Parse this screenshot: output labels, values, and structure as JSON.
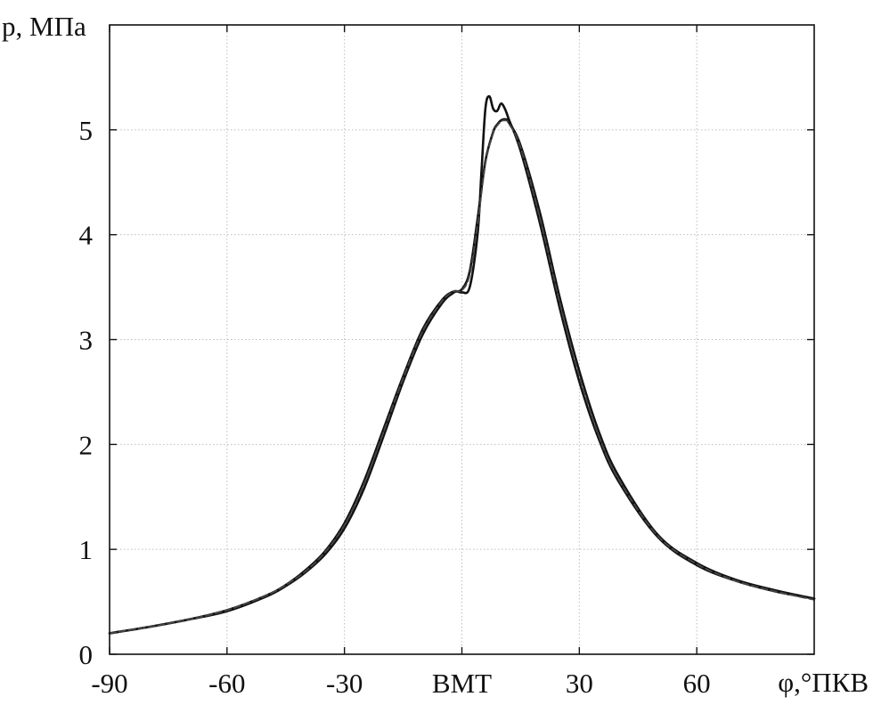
{
  "chart_data": {
    "type": "line",
    "title": "",
    "xlabel": "φ,°ПКВ",
    "ylabel": "p, МПа",
    "xlim": [
      -90,
      90
    ],
    "ylim": [
      0,
      6
    ],
    "grid": true,
    "x_ticks": [
      {
        "value": -90,
        "label": "-90"
      },
      {
        "value": -60,
        "label": "-60"
      },
      {
        "value": -30,
        "label": "-30"
      },
      {
        "value": 0,
        "label": "ВМТ"
      },
      {
        "value": 30,
        "label": "30"
      },
      {
        "value": 60,
        "label": "60"
      }
    ],
    "y_ticks": [
      {
        "value": 0,
        "label": "0"
      },
      {
        "value": 1,
        "label": "1"
      },
      {
        "value": 2,
        "label": "2"
      },
      {
        "value": 3,
        "label": "3"
      },
      {
        "value": 4,
        "label": "4"
      },
      {
        "value": 5,
        "label": "5"
      }
    ],
    "series": [
      {
        "color": "#111111",
        "style": "solid",
        "x": [
          -90,
          -80,
          -70,
          -60,
          -50,
          -45,
          -40,
          -35,
          -30,
          -25,
          -20,
          -15,
          -10,
          -5,
          -2,
          0,
          2,
          4,
          5,
          6,
          7,
          8,
          9,
          10,
          11,
          12,
          15,
          20,
          25,
          30,
          35,
          40,
          50,
          60,
          70,
          80,
          90
        ],
        "y": [
          0.2,
          0.26,
          0.33,
          0.42,
          0.56,
          0.66,
          0.8,
          0.98,
          1.25,
          1.65,
          2.15,
          2.65,
          3.1,
          3.38,
          3.46,
          3.45,
          3.5,
          4.0,
          4.6,
          5.2,
          5.32,
          5.2,
          5.18,
          5.25,
          5.2,
          5.1,
          4.8,
          4.1,
          3.3,
          2.6,
          2.05,
          1.65,
          1.12,
          0.85,
          0.7,
          0.6,
          0.53
        ]
      },
      {
        "color": "#111111",
        "style": "solid",
        "x": [
          -90,
          -80,
          -70,
          -60,
          -50,
          -45,
          -40,
          -35,
          -30,
          -25,
          -20,
          -15,
          -10,
          -5,
          -2,
          0,
          2,
          4,
          6,
          8,
          9,
          10,
          11,
          12,
          15,
          20,
          25,
          30,
          35,
          40,
          50,
          60,
          70,
          80,
          90
        ],
        "y": [
          0.2,
          0.26,
          0.33,
          0.41,
          0.55,
          0.65,
          0.78,
          0.95,
          1.2,
          1.58,
          2.08,
          2.6,
          3.05,
          3.35,
          3.45,
          3.48,
          3.65,
          4.15,
          4.7,
          4.98,
          5.05,
          5.09,
          5.1,
          5.07,
          4.85,
          4.2,
          3.4,
          2.7,
          2.12,
          1.7,
          1.14,
          0.87,
          0.71,
          0.61,
          0.53
        ]
      },
      {
        "color": "#444444",
        "style": "dashed",
        "x": [
          -90,
          -80,
          -70,
          -60,
          -50,
          -45,
          -40,
          -35,
          -30,
          -25,
          -20,
          -15,
          -10,
          -5,
          -2,
          0,
          2,
          4,
          6,
          8,
          9,
          10,
          11,
          12,
          15,
          20,
          25,
          30,
          35,
          40,
          50,
          60,
          70,
          80,
          90
        ],
        "y": [
          0.2,
          0.26,
          0.33,
          0.42,
          0.56,
          0.66,
          0.79,
          0.97,
          1.23,
          1.62,
          2.12,
          2.63,
          3.08,
          3.37,
          3.46,
          3.47,
          3.62,
          4.1,
          4.68,
          4.97,
          5.04,
          5.08,
          5.09,
          5.06,
          4.83,
          4.15,
          3.35,
          2.65,
          2.08,
          1.67,
          1.13,
          0.86,
          0.7,
          0.6,
          0.52
        ]
      }
    ]
  }
}
